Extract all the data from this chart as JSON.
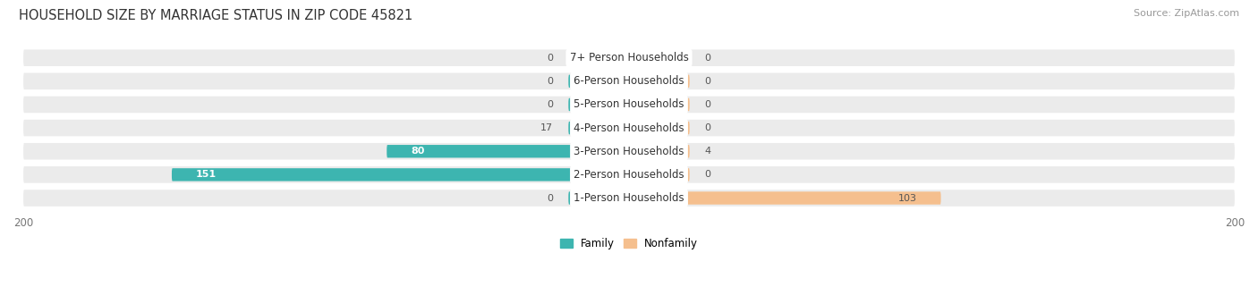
{
  "title": "HOUSEHOLD SIZE BY MARRIAGE STATUS IN ZIP CODE 45821",
  "source": "Source: ZipAtlas.com",
  "categories": [
    "7+ Person Households",
    "6-Person Households",
    "5-Person Households",
    "4-Person Households",
    "3-Person Households",
    "2-Person Households",
    "1-Person Households"
  ],
  "family": [
    0,
    0,
    0,
    17,
    80,
    151,
    0
  ],
  "nonfamily": [
    0,
    0,
    0,
    0,
    4,
    0,
    103
  ],
  "family_color": "#3db5b0",
  "nonfamily_color": "#f5bf8e",
  "row_bg_color": "#ebebeb",
  "axis_max": 200,
  "min_stub": 20,
  "title_fontsize": 10.5,
  "source_fontsize": 8,
  "label_fontsize": 8.5,
  "tick_fontsize": 8.5,
  "value_fontsize": 8
}
